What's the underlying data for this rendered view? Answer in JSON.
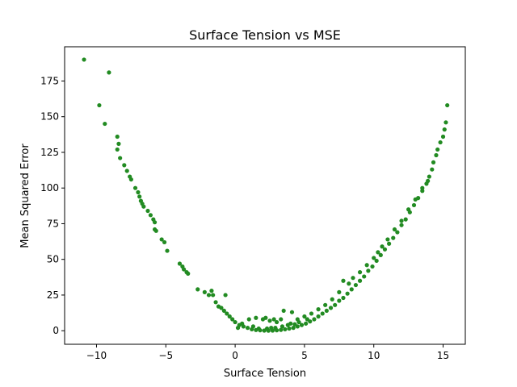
{
  "chart_data": {
    "type": "scatter",
    "title": "Surface Tension vs MSE",
    "xlabel": "Surface Tension",
    "ylabel": "Mean Squared Error",
    "xlim": [
      -12.3,
      16.6
    ],
    "ylim": [
      -9.5,
      199
    ],
    "x_ticks": [
      -10,
      -5,
      0,
      5,
      10,
      15
    ],
    "x_tick_labels": [
      "−10",
      "−5",
      "0",
      "5",
      "10",
      "15"
    ],
    "y_ticks": [
      0,
      25,
      50,
      75,
      100,
      125,
      150,
      175
    ],
    "y_tick_labels": [
      "0",
      "25",
      "50",
      "75",
      "100",
      "125",
      "150",
      "175"
    ],
    "grid": false,
    "marker_color": "#228B22",
    "series": [
      {
        "points": [
          [
            -10.9,
            190
          ],
          [
            -9.8,
            158
          ],
          [
            -9.4,
            145
          ],
          [
            -9.1,
            181
          ],
          [
            -8.5,
            136
          ],
          [
            -8.4,
            131
          ],
          [
            -8.5,
            127
          ],
          [
            -8.3,
            121
          ],
          [
            -8.0,
            116
          ],
          [
            -7.8,
            112
          ],
          [
            -7.6,
            108
          ],
          [
            -7.5,
            106
          ],
          [
            -7.2,
            100
          ],
          [
            -7.0,
            97
          ],
          [
            -6.9,
            94
          ],
          [
            -6.8,
            91
          ],
          [
            -6.7,
            89
          ],
          [
            -6.6,
            87
          ],
          [
            -6.3,
            84
          ],
          [
            -6.1,
            81
          ],
          [
            -5.9,
            78
          ],
          [
            -5.8,
            76
          ],
          [
            -5.8,
            71
          ],
          [
            -5.7,
            70
          ],
          [
            -5.3,
            64
          ],
          [
            -5.1,
            62
          ],
          [
            -4.9,
            56
          ],
          [
            -4.0,
            47
          ],
          [
            -3.8,
            45
          ],
          [
            -3.7,
            43
          ],
          [
            -3.5,
            41
          ],
          [
            -3.4,
            40
          ],
          [
            -2.7,
            29
          ],
          [
            -2.2,
            27
          ],
          [
            -1.9,
            25
          ],
          [
            -1.7,
            28
          ],
          [
            -1.6,
            25
          ],
          [
            -1.4,
            20
          ],
          [
            -1.2,
            17
          ],
          [
            -1.0,
            16
          ],
          [
            -0.8,
            14
          ],
          [
            -0.7,
            25
          ],
          [
            -0.6,
            12
          ],
          [
            -0.4,
            10
          ],
          [
            -0.2,
            8
          ],
          [
            0.0,
            6
          ],
          [
            0.3,
            4
          ],
          [
            0.6,
            3
          ],
          [
            0.9,
            2
          ],
          [
            1.2,
            1
          ],
          [
            1.5,
            0.5
          ],
          [
            1.8,
            0.3
          ],
          [
            2.1,
            0.1
          ],
          [
            2.4,
            0.0
          ],
          [
            2.7,
            0.1
          ],
          [
            3.0,
            0.3
          ],
          [
            3.3,
            0.6
          ],
          [
            3.6,
            1.0
          ],
          [
            3.9,
            1.5
          ],
          [
            4.2,
            2
          ],
          [
            4.5,
            3
          ],
          [
            4.8,
            4
          ],
          [
            5.1,
            5
          ],
          [
            5.4,
            6.5
          ],
          [
            5.7,
            8
          ],
          [
            6.0,
            10
          ],
          [
            6.3,
            12
          ],
          [
            6.6,
            14
          ],
          [
            6.9,
            16
          ],
          [
            7.2,
            18
          ],
          [
            7.5,
            21
          ],
          [
            7.8,
            23
          ],
          [
            8.1,
            26
          ],
          [
            8.4,
            29
          ],
          [
            8.7,
            32
          ],
          [
            9.0,
            35
          ],
          [
            9.3,
            38
          ],
          [
            9.6,
            42
          ],
          [
            9.9,
            45
          ],
          [
            10.2,
            49
          ],
          [
            10.5,
            53
          ],
          [
            10.8,
            57
          ],
          [
            11.1,
            61
          ],
          [
            11.4,
            65
          ],
          [
            11.7,
            69
          ],
          [
            12.0,
            74
          ],
          [
            12.3,
            78
          ],
          [
            12.6,
            83
          ],
          [
            12.9,
            88
          ],
          [
            13.2,
            93
          ],
          [
            13.5,
            98
          ],
          [
            13.8,
            103
          ],
          [
            14.0,
            108
          ],
          [
            14.2,
            113
          ],
          [
            14.3,
            118
          ],
          [
            14.5,
            123
          ],
          [
            14.6,
            127
          ],
          [
            14.8,
            132
          ],
          [
            15.0,
            136
          ],
          [
            15.1,
            141
          ],
          [
            15.2,
            146
          ],
          [
            15.3,
            158
          ],
          [
            1.0,
            8
          ],
          [
            1.5,
            9
          ],
          [
            2.0,
            8
          ],
          [
            2.2,
            9
          ],
          [
            2.5,
            7
          ],
          [
            2.8,
            8
          ],
          [
            3.0,
            6
          ],
          [
            3.3,
            8
          ],
          [
            3.5,
            14
          ],
          [
            4.1,
            13
          ],
          [
            4.5,
            8
          ],
          [
            5.0,
            10
          ],
          [
            5.5,
            12
          ],
          [
            6.0,
            15
          ],
          [
            6.5,
            18
          ],
          [
            7.0,
            22
          ],
          [
            7.5,
            27
          ],
          [
            7.8,
            35
          ],
          [
            8.2,
            33
          ],
          [
            8.5,
            37
          ],
          [
            9.0,
            41
          ],
          [
            9.5,
            46
          ],
          [
            10.0,
            51
          ],
          [
            10.3,
            55
          ],
          [
            10.6,
            59
          ],
          [
            11.0,
            64
          ],
          [
            11.5,
            71
          ],
          [
            12.0,
            77
          ],
          [
            12.5,
            85
          ],
          [
            13.0,
            92
          ],
          [
            13.5,
            100
          ],
          [
            13.9,
            105
          ],
          [
            0.5,
            5
          ],
          [
            1.3,
            3
          ],
          [
            2.6,
            2
          ],
          [
            3.4,
            3
          ],
          [
            4.0,
            5
          ],
          [
            4.6,
            6
          ],
          [
            5.2,
            8
          ],
          [
            0.2,
            2
          ],
          [
            1.7,
            1.5
          ],
          [
            2.3,
            1.5
          ],
          [
            2.9,
            2
          ],
          [
            3.8,
            4
          ],
          [
            4.3,
            4.5
          ]
        ]
      }
    ]
  }
}
